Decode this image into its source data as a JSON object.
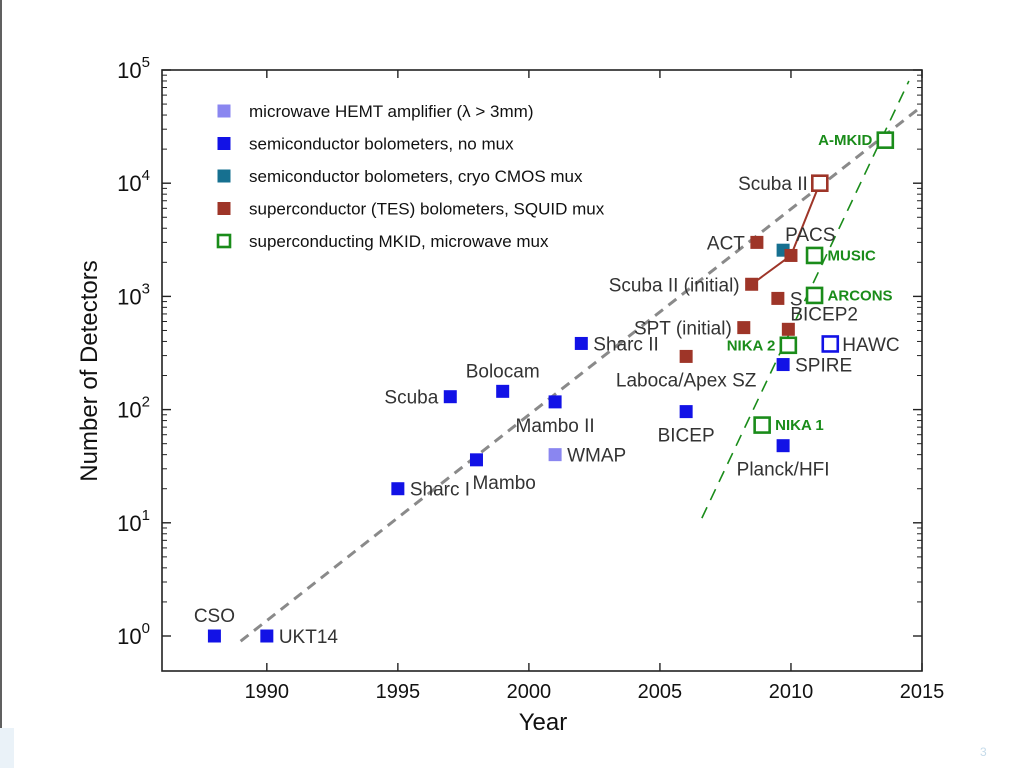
{
  "page_number": "3",
  "chart_data": {
    "type": "scatter",
    "xlabel": "Year",
    "ylabel": "Number of Detectors",
    "xlim": [
      1986,
      2015
    ],
    "ylim": [
      0.4,
      100000
    ],
    "y_scale": "log",
    "x_ticks": [
      {
        "value": 1990,
        "label": "1990"
      },
      {
        "value": 1995,
        "label": "1995"
      },
      {
        "value": 2000,
        "label": "2000"
      },
      {
        "value": 2005,
        "label": "2005"
      },
      {
        "value": 2010,
        "label": "2010"
      },
      {
        "value": 2015,
        "label": "2015"
      }
    ],
    "y_ticks": [
      {
        "value": 1,
        "base": "10",
        "exp": "0"
      },
      {
        "value": 10,
        "base": "10",
        "exp": "1"
      },
      {
        "value": 100,
        "base": "10",
        "exp": "2"
      },
      {
        "value": 1000,
        "base": "10",
        "exp": "3"
      },
      {
        "value": 10000,
        "base": "10",
        "exp": "4"
      },
      {
        "value": 100000,
        "base": "10",
        "exp": "5"
      }
    ],
    "legend_position": "top-left",
    "legend": [
      {
        "series": "hemt",
        "label": "microwave HEMT amplifier (λ > 3mm)"
      },
      {
        "series": "semi",
        "label": "semiconductor bolometers, no mux"
      },
      {
        "series": "cmos",
        "label": "semiconductor bolometers, cryo CMOS mux"
      },
      {
        "series": "tes",
        "label": "superconductor (TES) bolometers, SQUID mux"
      },
      {
        "series": "mkid",
        "label": "superconducting MKID, microwave mux"
      }
    ],
    "series_styles": {
      "hemt": {
        "color": "#8a86f0",
        "hollow": false
      },
      "semi": {
        "color": "#1212e6",
        "hollow": false
      },
      "cmos": {
        "color": "#167090",
        "hollow": false
      },
      "tes": {
        "color": "#9e3528",
        "hollow": false
      },
      "mkid": {
        "color": "#1a8c1a",
        "hollow": true
      },
      "mkid_blue": {
        "color": "#1212e6",
        "hollow": true
      },
      "mkid_brown": {
        "color": "#9e3528",
        "hollow": true
      }
    },
    "points": [
      {
        "label": "CSO",
        "series": "semi",
        "x": 1988,
        "y": 1,
        "label_pos": "above"
      },
      {
        "label": "UKT14",
        "series": "semi",
        "x": 1990,
        "y": 1,
        "label_pos": "right"
      },
      {
        "label": "Sharc I",
        "series": "semi",
        "x": 1995,
        "y": 20,
        "label_pos": "right"
      },
      {
        "label": "Scuba",
        "series": "semi",
        "x": 1997,
        "y": 130,
        "label_pos": "left"
      },
      {
        "label": "Mambo",
        "series": "semi",
        "x": 1998,
        "y": 36,
        "label_pos": "below-right"
      },
      {
        "label": "Bolocam",
        "series": "semi",
        "x": 1999,
        "y": 145,
        "label_pos": "above"
      },
      {
        "label": "Mambo II",
        "series": "semi",
        "x": 2001,
        "y": 117,
        "label_pos": "below"
      },
      {
        "label": "WMAP",
        "series": "hemt",
        "x": 2001,
        "y": 40,
        "label_pos": "right"
      },
      {
        "label": "Sharc II",
        "series": "semi",
        "x": 2002,
        "y": 384,
        "label_pos": "right"
      },
      {
        "label": "BICEP",
        "series": "semi",
        "x": 2006,
        "y": 96,
        "label_pos": "below"
      },
      {
        "label": "Laboca/Apex SZ",
        "series": "tes",
        "x": 2006,
        "y": 295,
        "label_pos": "below"
      },
      {
        "label": "SPT (initial)",
        "series": "tes",
        "x": 2008.2,
        "y": 530,
        "label_pos": "left"
      },
      {
        "label": "Scuba II (initial)",
        "series": "tes",
        "x": 2008.5,
        "y": 1280,
        "label_pos": "left"
      },
      {
        "label": "ACT",
        "series": "tes",
        "x": 2008.7,
        "y": 3000,
        "label_pos": "left"
      },
      {
        "label": "PACS",
        "series": "cmos",
        "x": 2009.7,
        "y": 2560,
        "label_pos": "above-right"
      },
      {
        "label": "",
        "series": "tes",
        "x": 2010,
        "y": 2300,
        "label_pos": "none"
      },
      {
        "label": "S",
        "series": "tes",
        "x": 2009.5,
        "y": 960,
        "label_pos": "right"
      },
      {
        "label": "BICEP2",
        "series": "tes",
        "x": 2009.9,
        "y": 512,
        "label_pos": "above-right"
      },
      {
        "label": "SPIRE",
        "series": "semi",
        "x": 2009.7,
        "y": 250,
        "label_pos": "right"
      },
      {
        "label": "Planck/HFI",
        "series": "semi",
        "x": 2009.7,
        "y": 48,
        "label_pos": "below"
      },
      {
        "label": "Scuba II",
        "series": "mkid_brown",
        "x": 2011.1,
        "y": 10000,
        "label_pos": "left"
      },
      {
        "label": "HAWC",
        "series": "mkid_blue",
        "x": 2011.5,
        "y": 380,
        "label_pos": "right"
      },
      {
        "label": "NIKA 1",
        "series": "mkid",
        "x": 2008.9,
        "y": 73,
        "label_pos": "right-green"
      },
      {
        "label": "NIKA 2",
        "series": "mkid",
        "x": 2009.9,
        "y": 370,
        "label_pos": "left-green"
      },
      {
        "label": "ARCONS",
        "series": "mkid",
        "x": 2010.9,
        "y": 1020,
        "label_pos": "right-green"
      },
      {
        "label": "MUSIC",
        "series": "mkid",
        "x": 2010.9,
        "y": 2300,
        "label_pos": "right-green"
      },
      {
        "label": "A-MKID",
        "series": "mkid",
        "x": 2013.6,
        "y": 24000,
        "label_pos": "left-green"
      }
    ],
    "trend_lines": [
      {
        "name": "semiconductor-trend",
        "color": "#8a8a8a",
        "dash": "10,7",
        "width": 3,
        "points": [
          [
            1989,
            0.9
          ],
          [
            2015,
            48000
          ]
        ]
      },
      {
        "name": "mkid-trend",
        "color": "#1a8c1a",
        "dash": "12,8",
        "width": 1.6,
        "points": [
          [
            2006.6,
            11
          ],
          [
            2014.5,
            80000
          ]
        ]
      }
    ],
    "connectors": [
      {
        "name": "scuba-ii-connector",
        "color": "#9e3528",
        "points": [
          [
            2008.5,
            1280
          ],
          [
            2010,
            2300
          ],
          [
            2011.1,
            10000
          ]
        ]
      }
    ]
  }
}
